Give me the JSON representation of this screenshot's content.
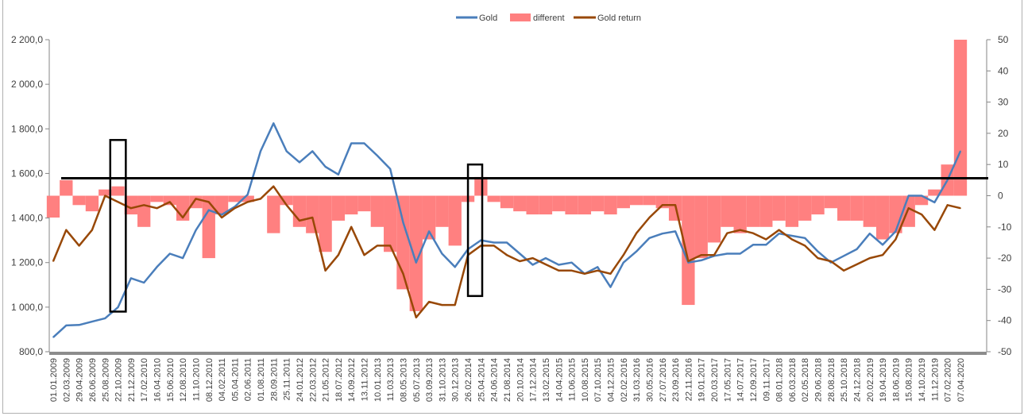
{
  "chart_data": {
    "type": "line",
    "title": "",
    "legend": {
      "placement": "top",
      "entries": [
        "Gold",
        "different",
        "Gold return"
      ]
    },
    "categories": [
      "01.01.2009",
      "02.03.2009",
      "29.04.2009",
      "26.06.2009",
      "25.08.2009",
      "22.10.2009",
      "21.12.2009",
      "17.02.2010",
      "16.04.2010",
      "15.06.2010",
      "12.08.2010",
      "11.10.2010",
      "08.12.2010",
      "04.02.2011",
      "05.04.2011",
      "02.06.2011",
      "01.08.2011",
      "28.09.2011",
      "25.11.2011",
      "24.01.2012",
      "22.03.2012",
      "21.05.2012",
      "18.07.2012",
      "14.09.2012",
      "13.11.2012",
      "10.01.2013",
      "11.03.2013",
      "08.05.2013",
      "05.07.2013",
      "03.09.2013",
      "31.10.2013",
      "30.12.2013",
      "26.02.2014",
      "25.04.2014",
      "24.06.2014",
      "21.08.2014",
      "20.10.2014",
      "17.12.2014",
      "13.02.2015",
      "14.04.2015",
      "11.06.2015",
      "10.08.2015",
      "07.10.2015",
      "04.12.2015",
      "02.02.2016",
      "31.03.2016",
      "30.05.2016",
      "27.07.2016",
      "23.09.2016",
      "22.11.2016",
      "19.01.2017",
      "20.03.2017",
      "17.05.2017",
      "14.07.2017",
      "12.09.2017",
      "09.11.2017",
      "08.01.2018",
      "06.03.2018",
      "02.05.2018",
      "29.06.2018",
      "28.08.2018",
      "25.10.2018",
      "24.12.2018",
      "20.02.2019",
      "19.04.2019",
      "18.06.2019",
      "15.08.2019",
      "14.10.2019",
      "11.12.2019",
      "07.02.2020",
      "07.04.2020"
    ],
    "series": [
      {
        "name": "Gold",
        "axis": "left",
        "kind": "line",
        "color": "#4a7ebb",
        "values": [
          865,
          918,
          920,
          935,
          950,
          1000,
          1130,
          1110,
          1180,
          1240,
          1220,
          1345,
          1435,
          1415,
          1450,
          1505,
          1700,
          1825,
          1700,
          1650,
          1700,
          1630,
          1595,
          1735,
          1735,
          1680,
          1620,
          1380,
          1200,
          1340,
          1240,
          1180,
          1260,
          1300,
          1290,
          1290,
          1240,
          1190,
          1220,
          1190,
          1200,
          1150,
          1180,
          1090,
          1200,
          1250,
          1310,
          1330,
          1340,
          1200,
          1210,
          1230,
          1240,
          1240,
          1280,
          1280,
          1330,
          1320,
          1310,
          1250,
          1200,
          1230,
          1260,
          1330,
          1280,
          1340,
          1500,
          1500,
          1470,
          1570,
          1700
        ]
      },
      {
        "name": "different",
        "axis": "right",
        "kind": "area",
        "color": "#ff8080",
        "values": [
          -7,
          5,
          -3,
          -5,
          2,
          3,
          -6,
          -10,
          -2,
          -3,
          -8,
          -4,
          -20,
          -6,
          -2,
          -2,
          0,
          -12,
          -3,
          -10,
          -12,
          -18,
          -8,
          -6,
          -5,
          -10,
          -18,
          -30,
          -37,
          -14,
          -10,
          -16,
          -2,
          6,
          -2,
          -4,
          -5,
          -6,
          -6,
          -5,
          -6,
          -6,
          -5,
          -6,
          -4,
          -3,
          -3,
          -4,
          -8,
          -35,
          -20,
          -15,
          -10,
          -12,
          -10,
          -10,
          -8,
          -10,
          -8,
          -6,
          -4,
          -8,
          -8,
          -10,
          -14,
          -12,
          -10,
          -3,
          2,
          10,
          50
        ]
      },
      {
        "name": "Gold return",
        "axis": "right",
        "kind": "line",
        "color": "#984807",
        "values": [
          -21,
          -11,
          -16,
          -11,
          0,
          -2,
          -4,
          -3,
          -4,
          -2,
          -7,
          -1,
          -2,
          -7,
          -4,
          -2,
          -1,
          3,
          -3,
          -8,
          -7,
          -24,
          -19,
          -10,
          -19,
          -16,
          -16,
          -25,
          -39,
          -34,
          -35,
          -35,
          -19,
          -16,
          -16,
          -19,
          -21,
          -20,
          -22,
          -24,
          -24,
          -25,
          -24,
          -25,
          -19,
          -12,
          -7,
          -3,
          -3,
          -21,
          -19,
          -19,
          -12,
          -11,
          -12,
          -14,
          -11,
          -14,
          -16,
          -20,
          -21,
          -24,
          -22,
          -20,
          -19,
          -14,
          -4,
          -6,
          -11,
          -3,
          -4
        ]
      }
    ],
    "y_left": {
      "min": 800,
      "max": 2200,
      "step": 200,
      "tick_labels": [
        "2 200,0",
        "2 000,0",
        "1 800,0",
        "1 600,0",
        "1 400,0",
        "1 200,0",
        "1 000,0",
        "800,0"
      ]
    },
    "y_right": {
      "min": -50,
      "max": 50,
      "step": 10,
      "tick_labels": [
        "50",
        "40",
        "30",
        "20",
        "10",
        "0",
        "-10",
        "-20",
        "-30",
        "-40",
        "-50"
      ]
    },
    "annotations": {
      "hline_right_value": 5.6,
      "boxes": [
        {
          "from_index": 4.4,
          "to_index": 5.6,
          "gold_low": 980,
          "gold_high": 1750
        },
        {
          "from_index": 32.0,
          "to_index": 33.1,
          "gold_low": 1050,
          "gold_high": 1640
        }
      ]
    },
    "grid": false
  }
}
